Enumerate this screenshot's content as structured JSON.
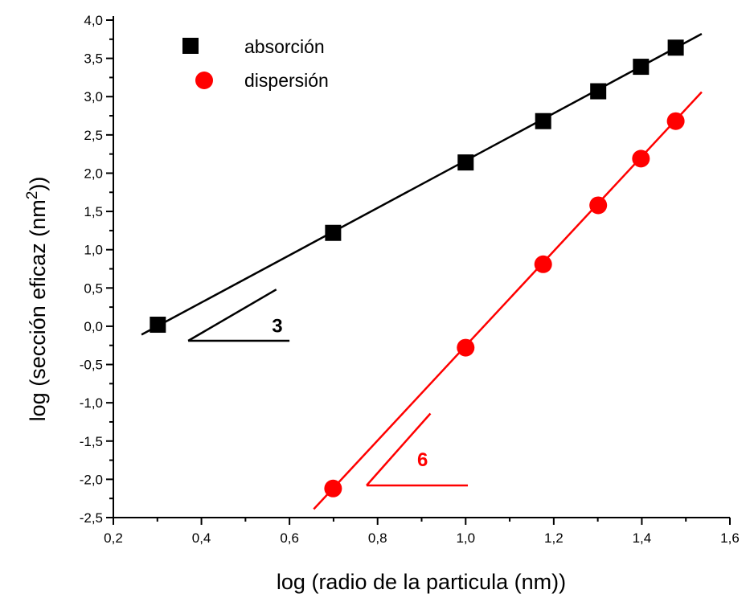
{
  "chart_data": {
    "type": "scatter",
    "title": "",
    "xlabel": "log (radio de la particula (nm))",
    "ylabel_prefix": "log (sección eficaz (nm",
    "ylabel_sup": "2",
    "ylabel_suffix": "))",
    "xlim": [
      0.2,
      1.6
    ],
    "ylim": [
      -2.5,
      4.0
    ],
    "x_ticks": [
      "0,2",
      "0,4",
      "0,6",
      "0,8",
      "1,0",
      "1,2",
      "1,4",
      "1,6"
    ],
    "x_tick_values": [
      0.2,
      0.4,
      0.6,
      0.8,
      1.0,
      1.2,
      1.4,
      1.6
    ],
    "y_ticks": [
      "-2,5",
      "-2,0",
      "-1,5",
      "-1,0",
      "-0,5",
      "0,0",
      "0,5",
      "1,0",
      "1,5",
      "2,0",
      "2,5",
      "3,0",
      "3,5",
      "4,0"
    ],
    "y_tick_values": [
      -2.5,
      -2.0,
      -1.5,
      -1.0,
      -0.5,
      0.0,
      0.5,
      1.0,
      1.5,
      2.0,
      2.5,
      3.0,
      3.5,
      4.0
    ],
    "grid": false,
    "legend_position": "top-left",
    "series": [
      {
        "name": "absorción",
        "color": "#000000",
        "marker": "square",
        "x": [
          0.301,
          0.699,
          1.0,
          1.176,
          1.301,
          1.398,
          1.477
        ],
        "y": [
          0.02,
          1.22,
          2.14,
          2.68,
          3.07,
          3.39,
          3.64
        ],
        "fit_line": {
          "x": [
            0.264,
            1.536
          ],
          "y": [
            -0.11,
            3.82
          ]
        },
        "slope_annotation": {
          "label": "3",
          "x0": 0.37,
          "y0": -0.19,
          "x_end": 0.6,
          "hyp_x1": 0.57,
          "hyp_y1": 0.48,
          "label_x": 0.56,
          "label_y": -0.08
        }
      },
      {
        "name": "dispersión",
        "color": "#ff0000",
        "marker": "circle",
        "x": [
          0.699,
          1.0,
          1.176,
          1.301,
          1.398,
          1.477
        ],
        "y": [
          -2.12,
          -0.28,
          0.81,
          1.58,
          2.19,
          2.68
        ],
        "fit_line": {
          "x": [
            0.655,
            1.536
          ],
          "y": [
            -2.39,
            3.06
          ]
        },
        "slope_annotation": {
          "label": "6",
          "x0": 0.775,
          "y0": -2.08,
          "x_end": 1.005,
          "hyp_x1": 0.92,
          "hyp_y1": -1.14,
          "label_x": 0.89,
          "label_y": -1.83
        }
      }
    ]
  }
}
